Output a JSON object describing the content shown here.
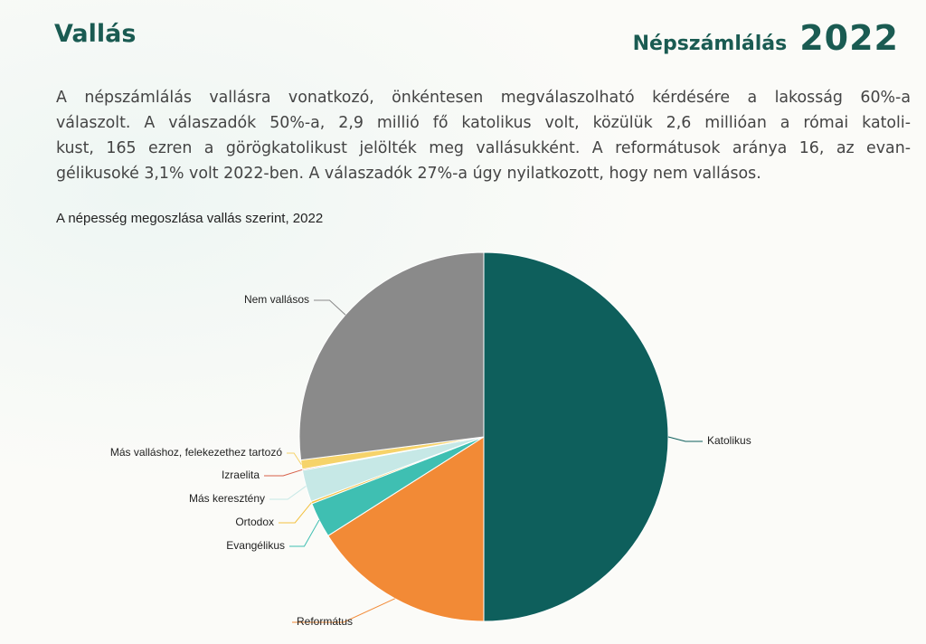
{
  "header": {
    "title": "Vallás",
    "brand": "Népszámlálás",
    "year": "2022"
  },
  "paragraph": [
    "A népszámlálás vallásra vonatkozó, önkéntesen megválaszolható kérdésére a lakosság 60%-a",
    "válaszolt. A válaszadók 50%-a, 2,9 millió fő katolikus volt, közülük 2,6 millióan a római katoli-",
    "kust, 165 ezren a görögkatolikust jelölték meg vallásukként. A reformátusok aránya 16, az evan-",
    "gélikusoké 3,1% volt 2022-ben. A válaszadók 27%-a úgy nyilatkozott, hogy nem vallásos."
  ],
  "chart_data": {
    "type": "pie",
    "title": "A népesség megoszlása vallás szerint, 2022",
    "categories": [
      "Katolikus",
      "Református",
      "Evangélikus",
      "Ortodox",
      "Más keresztény",
      "Izraelita",
      "Más valláshoz, felekezethez tartozó",
      "Nem vallásos"
    ],
    "values": [
      50,
      16,
      3.1,
      0.2,
      2.8,
      0.1,
      0.8,
      27
    ],
    "colors": [
      "#0e5f5c",
      "#f28a36",
      "#3fbfb2",
      "#f3c13f",
      "#c6e8e6",
      "#d75f48",
      "#f6d36a",
      "#8a8a8a"
    ]
  }
}
